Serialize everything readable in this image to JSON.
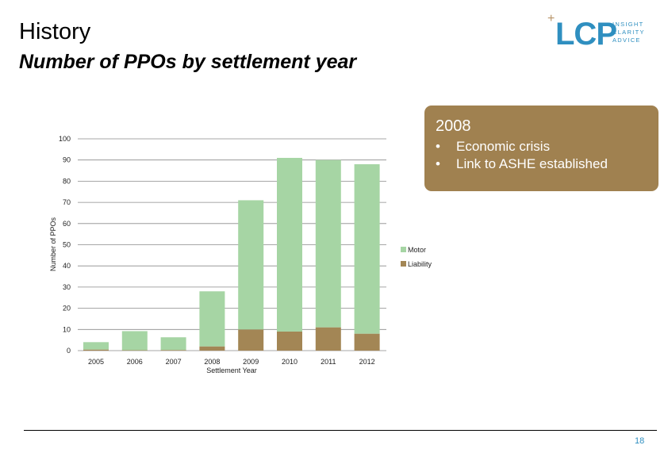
{
  "header": {
    "title": "History",
    "subtitle": "Number of PPOs by settlement year"
  },
  "logo": {
    "mark": "LCP",
    "plus": "+",
    "words": [
      "INSIGHT",
      "CLARITY",
      "ADVICE"
    ],
    "color": "#2f8fc0"
  },
  "callout": {
    "title": "2008",
    "bullet": "•",
    "items": [
      "Economic crisis",
      "Link to ASHE established"
    ],
    "color": "#a08150"
  },
  "footer": {
    "page_number": "18"
  },
  "chart_data": {
    "type": "bar",
    "stacked": true,
    "categories": [
      "2005",
      "2006",
      "2007",
      "2008",
      "2009",
      "2010",
      "2011",
      "2012"
    ],
    "series": [
      {
        "name": "Liability",
        "color": "#a38655",
        "values": [
          0.5,
          0.2,
          0.3,
          2,
          10,
          9,
          11,
          8
        ]
      },
      {
        "name": "Motor",
        "color": "#a6d5a4",
        "values": [
          3.5,
          9,
          6,
          26,
          61,
          82,
          79,
          80
        ]
      }
    ],
    "legend": [
      "Motor",
      "Liability"
    ],
    "legend_position": "right",
    "xlabel": "Settlement Year",
    "ylabel": "Number of PPOs",
    "ylim": [
      0,
      100
    ],
    "yticks": [
      0,
      10,
      20,
      30,
      40,
      50,
      60,
      70,
      80,
      90,
      100
    ],
    "grid": true
  }
}
